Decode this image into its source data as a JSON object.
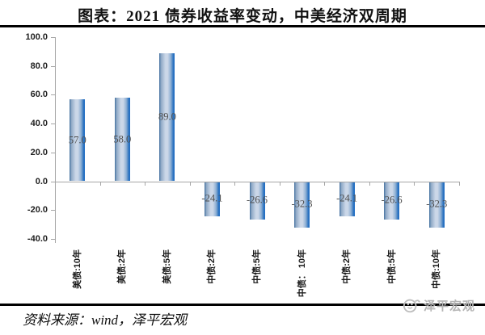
{
  "page": {
    "title": "图表：2021 债券收益率变动，中美经济双周期",
    "source_note": "资料来源：wind，泽平宏观",
    "watermark_label": "泽平宏观"
  },
  "colors": {
    "bar_edge_left": "#44719F",
    "bar_mid_light": "#CBD7E8",
    "bar_edge_right": "#1F6EC6",
    "axis": "#A6A6A6",
    "value_label": "#4D4D4D",
    "rule": "#000000",
    "watermark": "#B5B5B5"
  },
  "chart_data": {
    "type": "bar",
    "title": "图表：2021 债券收益率变动，中美经济双周期",
    "categories": [
      "美债:10年",
      "美债:2年",
      "美债:5年",
      "中债:2年",
      "中债:5年",
      "中债： 10年",
      "中债:2年",
      "中债:5年",
      "中债:10年"
    ],
    "values": [
      57.0,
      58.0,
      89.0,
      -24.1,
      -26.6,
      -32.3,
      -24.1,
      -26.6,
      -32.3
    ],
    "value_labels": [
      "57.0",
      "58.0",
      "89.0",
      "-24.1",
      "-26.6",
      "-32.3",
      "-24.1",
      "-26.6",
      "-32.3"
    ],
    "xlabel": "",
    "ylabel": "",
    "ylim": [
      -40,
      100
    ],
    "yticks": [
      100,
      80,
      60,
      40,
      20,
      0,
      -20,
      -40
    ],
    "ytick_labels": [
      "100.0",
      "80.0",
      "60.0",
      "40.0",
      "20.0",
      "0.0",
      "-20.0",
      "-40.0"
    ],
    "grid": false,
    "legend_position": "none"
  }
}
